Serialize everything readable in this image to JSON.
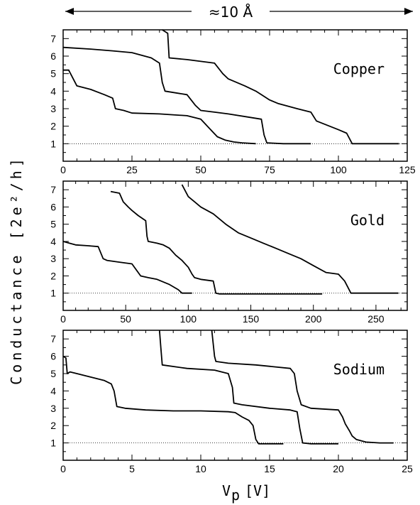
{
  "figure": {
    "scale_label": "≈10 Å",
    "ylabel": "Conductance [2e²/h]",
    "xlabel": "V",
    "xlabel_sub": "p",
    "xlabel_unit": "[V]"
  },
  "chart_data": [
    {
      "type": "line",
      "title": "Copper",
      "xlim": [
        0,
        125
      ],
      "ylim": [
        0,
        7.5
      ],
      "xticks": [
        0,
        25,
        50,
        75,
        100,
        125
      ],
      "yticks": [
        1,
        2,
        3,
        4,
        5,
        6,
        7
      ],
      "reference_line": 1,
      "series": [
        {
          "x": [
            0,
            2,
            5,
            10,
            15,
            18,
            19,
            22,
            25,
            35,
            45,
            50,
            53,
            56,
            59,
            62,
            65,
            70
          ],
          "y": [
            5.2,
            5.2,
            4.3,
            4.1,
            3.8,
            3.6,
            3.0,
            2.9,
            2.75,
            2.7,
            2.6,
            2.4,
            1.9,
            1.4,
            1.2,
            1.1,
            1.05,
            1.0
          ]
        },
        {
          "x": [
            0,
            10,
            18,
            25,
            32,
            35,
            36,
            37,
            45,
            48,
            50,
            55,
            60,
            68,
            72,
            73,
            74,
            80,
            85,
            90
          ],
          "y": [
            6.5,
            6.4,
            6.3,
            6.2,
            5.9,
            5.6,
            4.5,
            4.0,
            3.8,
            3.2,
            2.9,
            2.8,
            2.7,
            2.5,
            2.4,
            1.5,
            1.05,
            1.0,
            1.0,
            1.0
          ]
        },
        {
          "x": [
            36,
            38,
            38.5,
            45,
            55,
            58,
            60,
            66,
            70,
            72,
            75,
            78,
            85,
            90,
            92,
            100,
            103,
            105,
            110,
            115,
            120,
            122
          ],
          "y": [
            7.5,
            7.3,
            5.9,
            5.8,
            5.6,
            5.0,
            4.7,
            4.3,
            4.0,
            3.8,
            3.5,
            3.3,
            3.0,
            2.8,
            2.3,
            1.8,
            1.6,
            1.0,
            1.0,
            1.0,
            1.0,
            1.0
          ]
        }
      ]
    },
    {
      "type": "line",
      "title": "Gold",
      "xlim": [
        0,
        275
      ],
      "ylim": [
        0,
        7.5
      ],
      "xticks": [
        0,
        50,
        100,
        150,
        200,
        250
      ],
      "yticks": [
        1,
        2,
        3,
        4,
        5,
        6,
        7
      ],
      "reference_line": 1,
      "series": [
        {
          "x": [
            0,
            5,
            10,
            20,
            28,
            32,
            35,
            45,
            55,
            62,
            68,
            75,
            85,
            92,
            95,
            100,
            103
          ],
          "y": [
            4.0,
            3.9,
            3.8,
            3.75,
            3.7,
            3.0,
            2.9,
            2.8,
            2.7,
            2.0,
            1.9,
            1.8,
            1.5,
            1.2,
            1.0,
            1.0,
            1.0
          ]
        },
        {
          "x": [
            38,
            45,
            48,
            52,
            55,
            60,
            66,
            67,
            68,
            75,
            80,
            85,
            90,
            95,
            100,
            103,
            105,
            110,
            120,
            122,
            125,
            150,
            180,
            207
          ],
          "y": [
            6.9,
            6.8,
            6.3,
            6.0,
            5.8,
            5.5,
            5.2,
            4.3,
            4.0,
            3.9,
            3.8,
            3.6,
            3.2,
            2.9,
            2.5,
            2.1,
            1.9,
            1.8,
            1.7,
            1.0,
            0.95,
            0.95,
            0.95,
            0.95
          ]
        },
        {
          "x": [
            95,
            100,
            105,
            110,
            120,
            130,
            140,
            150,
            160,
            170,
            180,
            190,
            200,
            210,
            220,
            225,
            230,
            250,
            268
          ],
          "y": [
            7.3,
            6.6,
            6.3,
            6.0,
            5.6,
            5.0,
            4.5,
            4.2,
            3.9,
            3.6,
            3.3,
            3.0,
            2.6,
            2.2,
            2.1,
            1.7,
            1.0,
            1.0,
            1.0
          ]
        }
      ]
    },
    {
      "type": "line",
      "title": "Sodium",
      "xlim": [
        0,
        25
      ],
      "ylim": [
        0,
        7.5
      ],
      "xticks": [
        0,
        5,
        10,
        15,
        20,
        25
      ],
      "yticks": [
        1,
        2,
        3,
        4,
        5,
        6,
        7
      ],
      "reference_line": 1,
      "series": [
        {
          "x": [
            0,
            0.2,
            0.3,
            0.5,
            1,
            2,
            3,
            3.5,
            3.7,
            3.9,
            4.5,
            6,
            8,
            10,
            12,
            12.5,
            13,
            13.5,
            13.8,
            14,
            14.2,
            15,
            16
          ],
          "y": [
            6.0,
            5.9,
            5.0,
            5.1,
            5.0,
            4.8,
            4.6,
            4.4,
            4.0,
            3.1,
            3.0,
            2.9,
            2.85,
            2.85,
            2.8,
            2.75,
            2.5,
            2.3,
            2.0,
            1.2,
            0.95,
            0.95,
            0.95
          ]
        },
        {
          "x": [
            7.0,
            7.1,
            7.2,
            9,
            11,
            12,
            12.3,
            12.4,
            13,
            15,
            16.5,
            17,
            17.2,
            17.4,
            18,
            20
          ],
          "y": [
            7.5,
            6.5,
            5.5,
            5.3,
            5.2,
            5.0,
            4.2,
            3.3,
            3.2,
            3.0,
            2.9,
            2.8,
            1.8,
            1.0,
            0.95,
            0.95
          ]
        },
        {
          "x": [
            10.8,
            11.0,
            11.1,
            12,
            14,
            16.5,
            16.8,
            17,
            17.3,
            18,
            20,
            20.3,
            20.5,
            20.8,
            21,
            21.3,
            22,
            23,
            24
          ],
          "y": [
            7.5,
            6.0,
            5.7,
            5.6,
            5.5,
            5.3,
            5.0,
            4.0,
            3.2,
            3.0,
            2.9,
            2.5,
            2.1,
            1.7,
            1.4,
            1.2,
            1.05,
            1.0,
            1.0
          ]
        }
      ]
    }
  ]
}
